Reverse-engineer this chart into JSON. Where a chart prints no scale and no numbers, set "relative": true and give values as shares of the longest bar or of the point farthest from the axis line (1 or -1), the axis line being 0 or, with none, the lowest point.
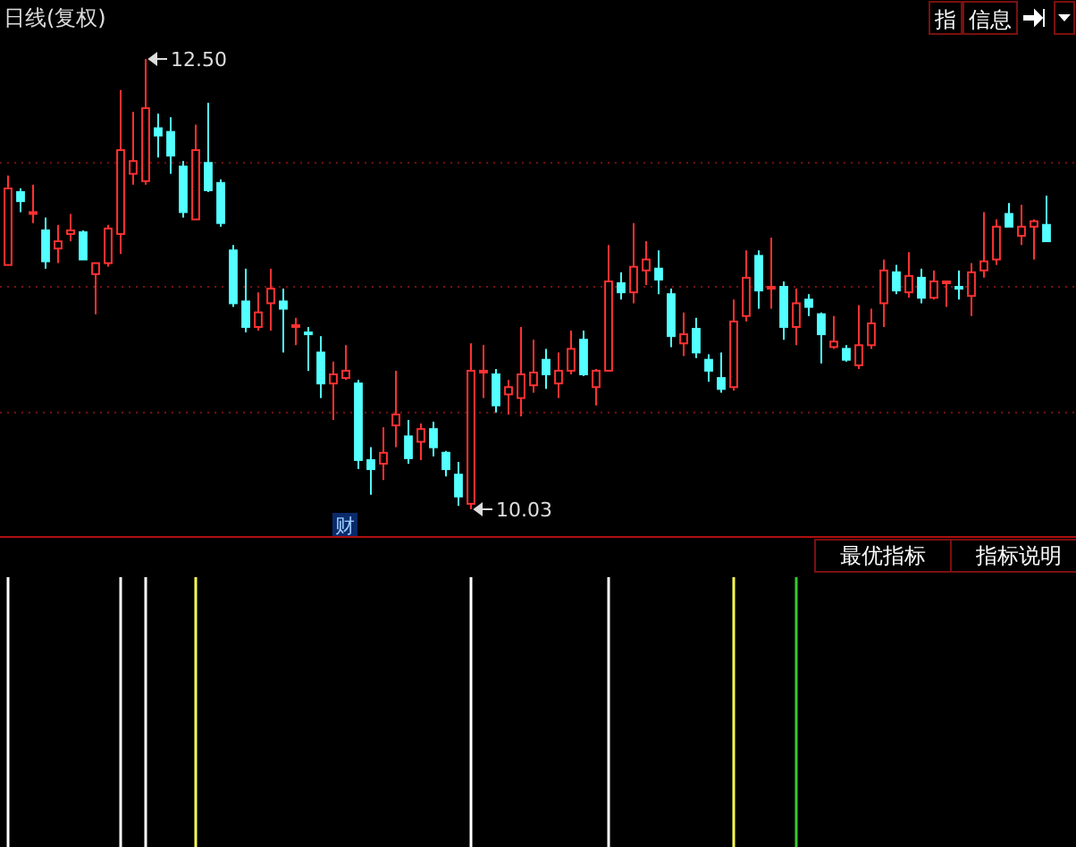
{
  "chart_data": [
    {
      "type": "candlestick",
      "title": "日线(复权)",
      "categories": [
        null,
        null,
        null,
        null,
        null,
        null,
        null,
        null,
        null,
        null,
        null,
        null,
        null,
        null,
        null,
        null,
        null,
        null,
        null,
        null,
        null,
        null,
        null,
        null,
        null,
        null,
        null,
        null,
        null,
        null,
        null,
        null,
        null,
        null,
        null,
        null,
        null,
        null,
        null,
        null,
        null,
        null,
        null,
        null,
        null,
        null,
        null,
        null,
        null,
        null,
        null,
        null,
        null,
        null,
        null,
        null,
        null,
        null,
        null,
        null,
        null,
        null,
        null,
        null,
        null,
        null,
        null,
        null,
        null,
        null,
        null,
        null,
        null,
        null,
        null,
        null,
        null,
        null,
        null,
        null,
        null,
        null,
        null,
        null
      ],
      "ohlc": [
        [
          11.37,
          11.86,
          11.37,
          11.79
        ],
        [
          11.77,
          11.79,
          11.66,
          11.72
        ],
        [
          11.65,
          11.81,
          11.6,
          11.66
        ],
        [
          11.56,
          11.63,
          11.35,
          11.39
        ],
        [
          11.46,
          11.59,
          11.38,
          11.5
        ],
        [
          11.54,
          11.65,
          11.5,
          11.56
        ],
        [
          11.55,
          11.56,
          11.4,
          11.4
        ],
        [
          11.32,
          11.38,
          11.1,
          11.38
        ],
        [
          11.38,
          11.59,
          11.36,
          11.57
        ],
        [
          11.54,
          12.33,
          11.43,
          12.0
        ],
        [
          11.87,
          12.21,
          11.81,
          11.94
        ],
        [
          11.83,
          12.5,
          11.81,
          12.23
        ],
        [
          12.12,
          12.2,
          11.96,
          12.08
        ],
        [
          12.1,
          12.18,
          11.87,
          11.97
        ],
        [
          11.91,
          11.94,
          11.63,
          11.66
        ],
        [
          11.62,
          12.14,
          11.62,
          12.0
        ],
        [
          11.93,
          12.26,
          11.77,
          11.78
        ],
        [
          11.82,
          11.84,
          11.58,
          11.6
        ],
        [
          11.45,
          11.48,
          11.14,
          11.16
        ],
        [
          11.17,
          11.35,
          11.0,
          11.03
        ],
        [
          11.03,
          11.22,
          11.01,
          11.11
        ],
        [
          11.16,
          11.35,
          11.01,
          11.24
        ],
        [
          11.17,
          11.24,
          10.89,
          11.13
        ],
        [
          11.03,
          11.08,
          10.93,
          11.04
        ],
        [
          11.0,
          11.03,
          10.79,
          10.99
        ],
        [
          10.89,
          10.98,
          10.64,
          10.72
        ],
        [
          10.72,
          10.84,
          10.52,
          10.77
        ],
        [
          10.75,
          10.93,
          10.74,
          10.79
        ],
        [
          10.72,
          10.74,
          10.25,
          10.3
        ],
        [
          10.3,
          10.37,
          10.11,
          10.25
        ],
        [
          10.28,
          10.48,
          10.19,
          10.34
        ],
        [
          10.49,
          10.79,
          10.37,
          10.55
        ],
        [
          10.43,
          10.52,
          10.28,
          10.31
        ],
        [
          10.4,
          10.5,
          10.3,
          10.47
        ],
        [
          10.47,
          10.51,
          10.32,
          10.37
        ],
        [
          10.34,
          10.35,
          10.21,
          10.25
        ],
        [
          10.22,
          10.29,
          10.05,
          10.1
        ],
        [
          10.06,
          10.94,
          10.03,
          10.79
        ],
        [
          10.78,
          10.93,
          10.64,
          10.79
        ],
        [
          10.77,
          10.8,
          10.56,
          10.6
        ],
        [
          10.66,
          10.74,
          10.55,
          10.7
        ],
        [
          10.64,
          11.03,
          10.54,
          10.77
        ],
        [
          10.71,
          10.96,
          10.67,
          10.78
        ],
        [
          10.85,
          10.91,
          10.69,
          10.77
        ],
        [
          10.72,
          10.89,
          10.64,
          10.79
        ],
        [
          10.79,
          11.01,
          10.77,
          10.91
        ],
        [
          10.96,
          11.01,
          10.76,
          10.77
        ],
        [
          10.7,
          10.8,
          10.6,
          10.79
        ],
        [
          10.79,
          11.48,
          10.79,
          11.28
        ],
        [
          11.27,
          11.33,
          11.18,
          11.22
        ],
        [
          11.22,
          11.6,
          11.16,
          11.36
        ],
        [
          11.34,
          11.5,
          11.26,
          11.4
        ],
        [
          11.35,
          11.45,
          11.21,
          11.29
        ],
        [
          11.21,
          11.24,
          10.92,
          10.98
        ],
        [
          10.94,
          11.11,
          10.87,
          10.99
        ],
        [
          11.02,
          11.08,
          10.86,
          10.89
        ],
        [
          10.85,
          10.88,
          10.73,
          10.79
        ],
        [
          10.75,
          10.89,
          10.67,
          10.69
        ],
        [
          10.7,
          11.18,
          10.68,
          11.06
        ],
        [
          11.09,
          11.45,
          11.06,
          11.3
        ],
        [
          11.42,
          11.45,
          11.13,
          11.23
        ],
        [
          11.24,
          11.52,
          11.13,
          11.25
        ],
        [
          11.25,
          11.28,
          10.96,
          11.03
        ],
        [
          11.03,
          11.24,
          10.93,
          11.16
        ],
        [
          11.18,
          11.21,
          11.09,
          11.14
        ],
        [
          11.1,
          11.11,
          10.83,
          10.99
        ],
        [
          10.92,
          11.09,
          10.91,
          10.95
        ],
        [
          10.91,
          10.93,
          10.84,
          10.85
        ],
        [
          10.82,
          11.15,
          10.8,
          10.93
        ],
        [
          10.93,
          11.13,
          10.91,
          11.05
        ],
        [
          11.16,
          11.4,
          11.03,
          11.34
        ],
        [
          11.33,
          11.37,
          11.21,
          11.23
        ],
        [
          11.22,
          11.44,
          11.19,
          11.31
        ],
        [
          11.3,
          11.35,
          11.16,
          11.19
        ],
        [
          11.19,
          11.34,
          11.18,
          11.28
        ],
        [
          11.27,
          11.28,
          11.14,
          11.28
        ],
        [
          11.25,
          11.34,
          11.18,
          11.24
        ],
        [
          11.2,
          11.38,
          11.09,
          11.33
        ],
        [
          11.34,
          11.66,
          11.3,
          11.39
        ],
        [
          11.4,
          11.62,
          11.37,
          11.58
        ],
        [
          11.65,
          11.71,
          11.58,
          11.58
        ],
        [
          11.53,
          11.7,
          11.48,
          11.58
        ],
        [
          11.58,
          11.62,
          11.4,
          11.61
        ],
        [
          11.59,
          11.75,
          11.5,
          11.5
        ]
      ],
      "yticks": [
        {
          "value": 11.93,
          "label": null
        },
        {
          "value": 11.25,
          "label": null
        },
        {
          "value": 10.56,
          "label": null
        }
      ],
      "grid": "y",
      "annotations": [
        "12.50",
        "10.03",
        "财",
        "指",
        "信息"
      ]
    },
    {
      "type": "bar",
      "relative": true,
      "categories": [
        null,
        null,
        null,
        null,
        null,
        null,
        null,
        null,
        null,
        null,
        null,
        null,
        null,
        null,
        null,
        null,
        null,
        null,
        null,
        null,
        null,
        null,
        null,
        null,
        null,
        null,
        null,
        null,
        null,
        null,
        null,
        null,
        null,
        null,
        null,
        null,
        null,
        null,
        null,
        null,
        null,
        null,
        null,
        null,
        null,
        null,
        null,
        null,
        null,
        null,
        null,
        null,
        null,
        null,
        null,
        null,
        null,
        null,
        null,
        null,
        null,
        null,
        null,
        null,
        null,
        null,
        null,
        null,
        null,
        null,
        null,
        null,
        null,
        null,
        null,
        null,
        null,
        null,
        null,
        null,
        null,
        null,
        null,
        null
      ],
      "values": [
        1,
        null,
        null,
        null,
        null,
        null,
        null,
        null,
        null,
        1,
        null,
        1,
        null,
        null,
        null,
        1,
        null,
        null,
        null,
        null,
        null,
        null,
        null,
        null,
        null,
        null,
        null,
        null,
        null,
        null,
        null,
        null,
        null,
        null,
        null,
        null,
        null,
        1,
        null,
        null,
        null,
        null,
        null,
        null,
        null,
        null,
        null,
        null,
        1,
        null,
        null,
        null,
        null,
        null,
        null,
        null,
        null,
        null,
        1,
        null,
        null,
        null,
        null,
        1,
        null,
        null,
        null,
        null,
        null,
        null,
        null,
        null,
        null,
        null,
        null,
        null,
        null,
        null,
        null,
        null,
        null,
        null,
        null,
        null
      ],
      "colors": [
        "#ffffff",
        null,
        null,
        null,
        null,
        null,
        null,
        null,
        null,
        "#ffffff",
        null,
        "#ffffff",
        null,
        null,
        null,
        "#ffff54",
        null,
        null,
        null,
        null,
        null,
        null,
        null,
        null,
        null,
        null,
        null,
        null,
        null,
        null,
        null,
        null,
        null,
        null,
        null,
        null,
        null,
        "#ffffff",
        null,
        null,
        null,
        null,
        null,
        null,
        null,
        null,
        null,
        null,
        "#ffffff",
        null,
        null,
        null,
        null,
        null,
        null,
        null,
        null,
        null,
        "#ffff54",
        null,
        null,
        null,
        null,
        "#33cc33",
        null,
        null,
        null,
        null,
        null,
        null,
        null,
        null,
        null,
        null,
        null,
        null,
        null,
        null,
        null,
        null,
        null,
        null,
        null,
        null
      ],
      "annotations": [
        "最优指标",
        "指标说明"
      ]
    }
  ]
}
